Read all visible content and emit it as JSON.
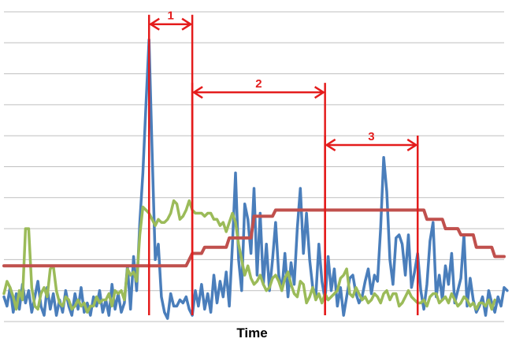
{
  "chart_data": {
    "type": "line",
    "title": "",
    "xlabel": "Time",
    "ylabel": "",
    "x_range": [
      0,
      162
    ],
    "ylim": [
      0,
      10
    ],
    "grid": "horizontal",
    "legend": "none",
    "series": [
      {
        "color": "#4a7ebb",
        "values": [
          0.8,
          0.5,
          1.1,
          0.3,
          0.9,
          0.4,
          1.2,
          0.6,
          1.0,
          0.3,
          0.8,
          1.3,
          0.5,
          0.2,
          1.1,
          0.4,
          0.9,
          0.2,
          0.7,
          0.3,
          1.0,
          0.5,
          0.2,
          0.9,
          0.4,
          1.1,
          0.3,
          0.6,
          0.2,
          0.8,
          0.5,
          1.0,
          0.3,
          0.7,
          0.2,
          1.2,
          0.4,
          0.9,
          0.3,
          0.6,
          1.8,
          0.4,
          2.1,
          1.0,
          3.2,
          4.8,
          7.0,
          9.1,
          5.5,
          2.0,
          2.5,
          0.8,
          0.3,
          0.1,
          0.9,
          0.5,
          0.5,
          0.7,
          0.6,
          0.8,
          0.4,
          0.2,
          1.0,
          0.5,
          1.2,
          0.4,
          0.9,
          0.3,
          1.5,
          0.6,
          1.3,
          0.8,
          1.6,
          0.5,
          2.5,
          4.8,
          2.0,
          1.0,
          3.8,
          3.3,
          2.2,
          4.3,
          1.5,
          3.5,
          1.2,
          2.5,
          1.0,
          2.0,
          3.2,
          1.5,
          1.0,
          2.2,
          0.8,
          1.9,
          1.2,
          3.0,
          4.3,
          2.2,
          3.5,
          2.0,
          1.1,
          0.8,
          2.5,
          1.3,
          0.7,
          2.1,
          1.0,
          1.7,
          0.5,
          1.1,
          0.2,
          0.8,
          1.4,
          1.5,
          0.9,
          0.6,
          0.8,
          1.3,
          1.7,
          0.9,
          1.5,
          1.3,
          3.0,
          5.3,
          4.2,
          2.0,
          1.2,
          2.7,
          2.8,
          2.5,
          1.5,
          2.8,
          1.1,
          1.6,
          2.2,
          1.0,
          0.4,
          1.2,
          2.6,
          3.2,
          0.8,
          1.5,
          0.7,
          1.8,
          1.2,
          2.2,
          0.6,
          1.0,
          1.4,
          2.8,
          0.5,
          1.4,
          0.7,
          0.3,
          0.5,
          0.8,
          0.2,
          1.0,
          0.6,
          0.3,
          0.8,
          0.5,
          1.1,
          1.0
        ]
      },
      {
        "color": "#9bbb59",
        "values": [
          0.9,
          1.3,
          1.1,
          0.8,
          0.4,
          1.0,
          0.7,
          3.0,
          3.0,
          1.1,
          0.5,
          0.4,
          0.9,
          1.1,
          0.8,
          1.7,
          1.8,
          1.0,
          0.6,
          0.5,
          0.8,
          0.7,
          0.4,
          0.5,
          0.7,
          0.5,
          0.6,
          0.3,
          0.5,
          0.5,
          0.8,
          0.6,
          0.7,
          0.7,
          0.9,
          0.5,
          1.0,
          0.9,
          1.0,
          0.7,
          1.7,
          1.5,
          1.6,
          1.3,
          2.8,
          3.7,
          3.6,
          3.5,
          3.3,
          3.1,
          3.3,
          3.2,
          3.2,
          3.3,
          3.5,
          3.9,
          3.8,
          3.3,
          3.4,
          3.6,
          3.9,
          3.6,
          3.5,
          3.5,
          3.5,
          3.4,
          3.5,
          3.5,
          3.3,
          3.3,
          3.1,
          3.2,
          2.9,
          3.2,
          3.5,
          3.2,
          2.5,
          2.0,
          1.5,
          1.8,
          1.4,
          1.2,
          1.3,
          1.5,
          1.2,
          1.0,
          1.1,
          1.4,
          1.5,
          1.3,
          1.0,
          1.4,
          1.6,
          1.2,
          0.9,
          0.8,
          1.3,
          1.2,
          0.6,
          0.8,
          1.1,
          0.7,
          0.9,
          0.6,
          0.9,
          0.7,
          0.8,
          0.9,
          1.0,
          1.4,
          1.5,
          1.7,
          0.9,
          0.8,
          1.1,
          0.9,
          0.7,
          0.8,
          0.6,
          0.7,
          0.9,
          0.8,
          0.6,
          0.9,
          1.0,
          0.7,
          0.9,
          0.9,
          0.5,
          0.6,
          0.8,
          1.0,
          0.8,
          0.7,
          0.6,
          0.6,
          0.7,
          0.5,
          0.8,
          0.9,
          0.9,
          0.6,
          0.7,
          0.8,
          0.6,
          0.9,
          0.7,
          0.5,
          0.6,
          0.8,
          0.7,
          0.5,
          0.6,
          0.4,
          0.6,
          0.6,
          0.5,
          0.7,
          0.4,
          0.7
        ]
      },
      {
        "color": "#c0504d",
        "x": [
          0,
          59,
          61,
          64,
          65,
          72,
          73,
          80,
          81,
          87,
          88,
          136,
          137,
          142,
          143,
          147,
          148,
          152,
          153,
          158,
          159,
          162
        ],
        "values": [
          1.8,
          1.8,
          2.2,
          2.2,
          2.4,
          2.4,
          2.7,
          2.7,
          3.4,
          3.4,
          3.6,
          3.6,
          3.3,
          3.3,
          3.0,
          3.0,
          2.8,
          2.8,
          2.4,
          2.4,
          2.1,
          2.1
        ]
      }
    ],
    "annotations": [
      {
        "label": "1",
        "x_from": 47,
        "x_to": 61,
        "level": 9.6
      },
      {
        "label": "2",
        "x_from": 61,
        "x_to": 104,
        "level": 7.4
      },
      {
        "label": "3",
        "x_from": 104,
        "x_to": 134,
        "level": 5.7
      }
    ],
    "annotation_color": "#e41c1c",
    "grid_color": "#bfbfbf"
  }
}
